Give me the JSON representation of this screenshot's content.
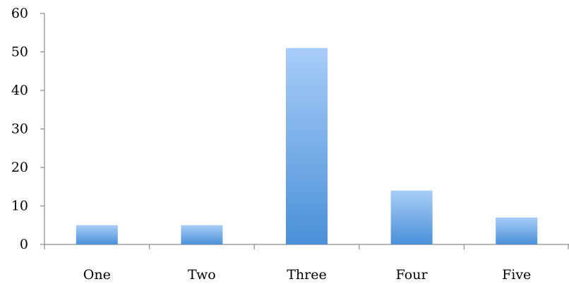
{
  "chart_data": {
    "type": "bar",
    "title": "",
    "xlabel": "",
    "ylabel": "",
    "categories": [
      "One",
      "Two",
      "Three",
      "Four",
      "Five"
    ],
    "values": [
      5,
      5,
      51,
      14,
      7
    ],
    "ylim": [
      0,
      60
    ],
    "yticks": [
      "0",
      "10",
      "20",
      "30",
      "40",
      "50",
      "60"
    ],
    "grid": false,
    "legend": "none",
    "colors": {
      "bar_top": "#a8cdf8",
      "bar_bottom": "#4a90d8",
      "axis": "#8c8c8c",
      "text": "#000000"
    }
  }
}
